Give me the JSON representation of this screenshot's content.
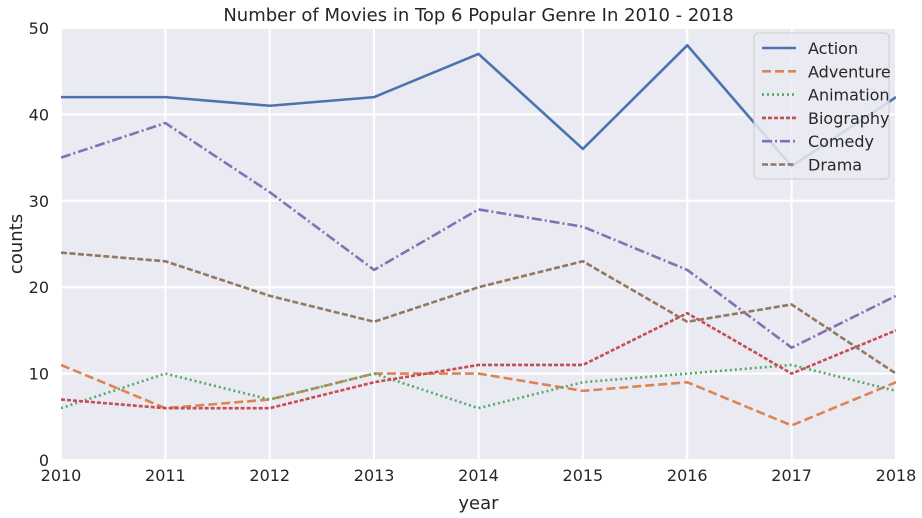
{
  "chart_data": {
    "type": "line",
    "title": "Number of Movies in Top 6 Popular Genre In 2010 - 2018",
    "xlabel": "year",
    "ylabel": "counts",
    "x": [
      2010,
      2011,
      2012,
      2013,
      2014,
      2015,
      2016,
      2017,
      2018
    ],
    "x_ticks": [
      "2010",
      "2011",
      "2012",
      "2013",
      "2014",
      "2015",
      "2016",
      "2017",
      "2018"
    ],
    "xlim": [
      2010,
      2018
    ],
    "ylim": [
      0,
      50
    ],
    "y_ticks": [
      "0",
      "10",
      "20",
      "30",
      "40",
      "50"
    ],
    "grid": true,
    "legend_position": "top-right",
    "series": [
      {
        "name": "Action",
        "color": "#4c72b0",
        "dash": "solid",
        "values": [
          42,
          42,
          41,
          42,
          47,
          36,
          48,
          34,
          42
        ]
      },
      {
        "name": "Adventure",
        "color": "#dd8452",
        "dash": "dashed",
        "values": [
          11,
          6,
          7,
          10,
          10,
          8,
          9,
          4,
          9
        ]
      },
      {
        "name": "Animation",
        "color": "#55a868",
        "dash": "dotted",
        "values": [
          6,
          10,
          7,
          10,
          6,
          9,
          10,
          11,
          8
        ]
      },
      {
        "name": "Biography",
        "color": "#c44e52",
        "dash": "densedash",
        "values": [
          7,
          6,
          6,
          9,
          11,
          11,
          17,
          10,
          15
        ]
      },
      {
        "name": "Comedy",
        "color": "#8172b3",
        "dash": "dashdot",
        "values": [
          35,
          39,
          31,
          22,
          29,
          27,
          22,
          13,
          19
        ]
      },
      {
        "name": "Drama",
        "color": "#937860",
        "dash": "loosedash",
        "values": [
          24,
          23,
          19,
          16,
          20,
          23,
          16,
          18,
          10
        ]
      }
    ]
  }
}
